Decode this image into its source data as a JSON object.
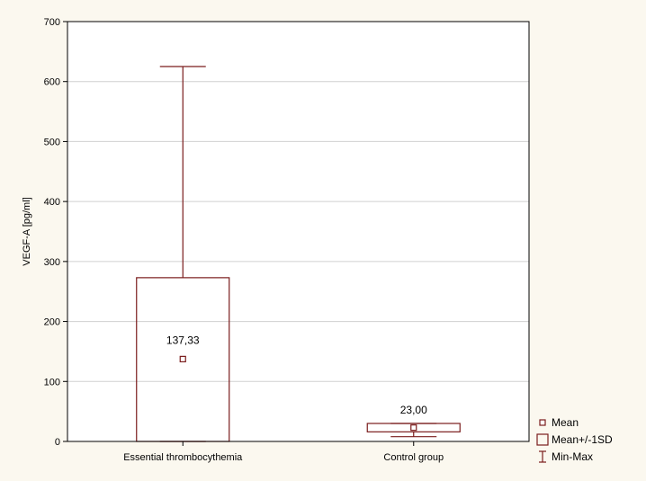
{
  "chart_data": {
    "type": "box",
    "xlabel": "",
    "ylabel": "VEGF-A [pg/ml]",
    "ylim": [
      0,
      700
    ],
    "yticks": [
      0,
      100,
      200,
      300,
      400,
      500,
      600,
      700
    ],
    "grid": true,
    "legend_position": "bottom-right, outside plot",
    "categories": [
      "Essential thrombocythemia",
      "Control group"
    ],
    "stats": [
      {
        "category": "Essential thrombocythemia",
        "mean": 137.33,
        "mean_label": "137,33",
        "sd_low": 0,
        "sd_high": 273,
        "min": 0,
        "max": 625
      },
      {
        "category": "Control group",
        "mean": 23.0,
        "mean_label": "23,00",
        "sd_low": 16,
        "sd_high": 30,
        "min": 8,
        "max": 30
      }
    ],
    "legend": [
      {
        "key": "mean",
        "label": "Mean"
      },
      {
        "key": "box",
        "label": "Mean+/-1SD"
      },
      {
        "key": "whisker",
        "label": "Min-Max"
      }
    ],
    "colors": {
      "series": "#7a1c1c",
      "grid": "#d0d0d0",
      "plot_bg": "#ffffff",
      "page_bg": "#fbf8ef"
    }
  }
}
